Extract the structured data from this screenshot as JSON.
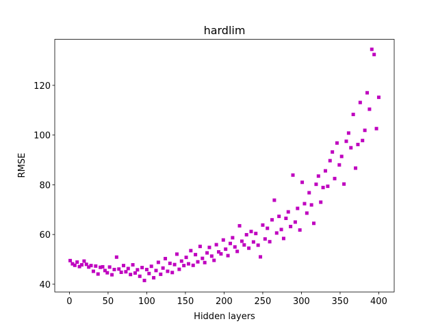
{
  "chart_data": {
    "type": "scatter",
    "title": "hardlim",
    "xlabel": "Hidden layers",
    "ylabel": "RMSE",
    "color": "#bf00bf",
    "x": [
      1,
      4,
      7,
      10,
      13,
      16,
      19,
      22,
      25,
      28,
      31,
      34,
      37,
      40,
      43,
      46,
      49,
      52,
      55,
      58,
      61,
      64,
      67,
      70,
      73,
      76,
      79,
      82,
      85,
      88,
      91,
      94,
      97,
      100,
      103,
      106,
      109,
      112,
      115,
      118,
      121,
      124,
      127,
      130,
      133,
      136,
      139,
      142,
      145,
      148,
      151,
      154,
      157,
      160,
      163,
      166,
      169,
      172,
      175,
      178,
      181,
      184,
      187,
      190,
      193,
      196,
      199,
      202,
      205,
      208,
      211,
      214,
      217,
      220,
      223,
      226,
      229,
      232,
      235,
      238,
      241,
      244,
      247,
      250,
      253,
      256,
      259,
      262,
      265,
      268,
      271,
      274,
      277,
      280,
      283,
      286,
      289,
      292,
      295,
      298,
      301,
      304,
      307,
      310,
      313,
      316,
      319,
      322,
      325,
      328,
      331,
      334,
      337,
      340,
      343,
      346,
      349,
      352,
      355,
      358,
      361,
      364,
      367,
      370,
      373,
      376,
      379,
      382,
      385,
      388,
      391,
      394,
      397,
      400
    ],
    "values": [
      49.5,
      48.2,
      47.6,
      48.9,
      47.1,
      47.8,
      49.3,
      48.0,
      46.9,
      47.5,
      45.2,
      47.3,
      44.1,
      46.8,
      47.0,
      45.5,
      44.6,
      46.9,
      43.8,
      45.9,
      50.9,
      46.1,
      44.8,
      47.5,
      45.0,
      46.3,
      43.9,
      47.8,
      44.5,
      45.8,
      43.2,
      46.7,
      41.5,
      45.9,
      44.3,
      47.2,
      42.6,
      45.5,
      48.8,
      44.0,
      46.5,
      50.3,
      45.2,
      48.4,
      44.7,
      47.9,
      52.1,
      46.0,
      49.3,
      47.5,
      50.8,
      48.2,
      53.5,
      47.6,
      51.9,
      49.0,
      55.2,
      50.4,
      48.7,
      52.6,
      54.8,
      51.3,
      49.6,
      55.9,
      53.0,
      52.2,
      57.8,
      54.1,
      51.5,
      56.4,
      58.7,
      55.0,
      53.2,
      63.5,
      57.3,
      55.8,
      59.9,
      54.5,
      61.2,
      57.0,
      60.4,
      55.7,
      51.0,
      63.8,
      58.2,
      62.5,
      57.1,
      65.9,
      73.8,
      60.6,
      67.3,
      62.0,
      58.4,
      66.5,
      69.1,
      63.2,
      83.9,
      65.0,
      70.5,
      61.8,
      81.0,
      72.4,
      68.6,
      76.8,
      71.9,
      64.5,
      80.2,
      83.5,
      73.0,
      78.9,
      85.6,
      79.4,
      89.7,
      93.2,
      82.5,
      96.8,
      88.0,
      91.4,
      80.3,
      97.5,
      100.8,
      94.9,
      108.3,
      86.7,
      96.2,
      113.1,
      97.8,
      101.9,
      117.0,
      110.4,
      134.5,
      132.4,
      102.6,
      115.2
    ],
    "xlim": [
      -18.95,
      419.95
    ],
    "ylim": [
      36.9,
      138.5
    ],
    "xticks": [
      0,
      50,
      100,
      150,
      200,
      250,
      300,
      350,
      400
    ],
    "yticks": [
      40,
      60,
      80,
      100,
      120
    ]
  }
}
